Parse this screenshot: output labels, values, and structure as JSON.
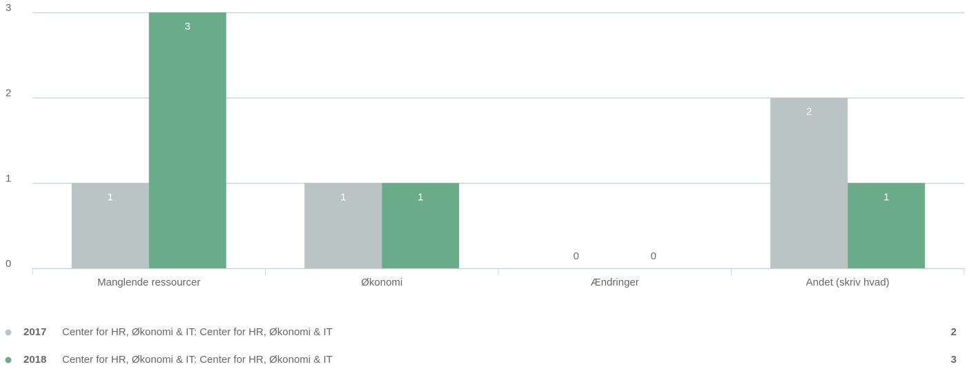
{
  "chart_data": {
    "type": "bar",
    "categories": [
      "Manglende ressourcer",
      "Økonomi",
      "Ændringer",
      "Andet (skriv hvad)"
    ],
    "series": [
      {
        "name": "2017",
        "description": "Center for HR, Økonomi & IT: Center for HR, Økonomi & IT",
        "count": 2,
        "color": "#bac4c4",
        "values": [
          1,
          1,
          0,
          2
        ]
      },
      {
        "name": "2018",
        "description": "Center for HR, Økonomi & IT: Center for HR, Økonomi & IT",
        "count": 3,
        "color": "#6aab8a",
        "values": [
          3,
          1,
          0,
          1
        ]
      }
    ],
    "ylim": [
      0,
      3
    ],
    "yticks": [
      0,
      1,
      2,
      3
    ],
    "grid": true
  }
}
